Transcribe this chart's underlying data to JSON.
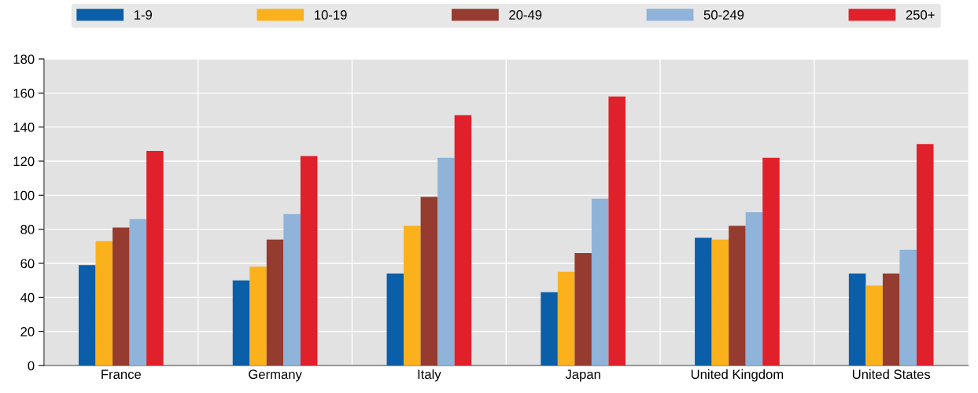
{
  "chart_data": {
    "type": "bar",
    "categories": [
      "France",
      "Germany",
      "Italy",
      "Japan",
      "United Kingdom",
      "United States"
    ],
    "series": [
      {
        "name": "1-9",
        "color": "#0b5ea8",
        "values": [
          59,
          50,
          54,
          43,
          75,
          54
        ]
      },
      {
        "name": "10-19",
        "color": "#fbb11c",
        "values": [
          73,
          58,
          82,
          55,
          74,
          47
        ]
      },
      {
        "name": "20-49",
        "color": "#953b2f",
        "values": [
          81,
          74,
          99,
          66,
          82,
          54
        ]
      },
      {
        "name": "50-249",
        "color": "#8fb3d9",
        "values": [
          86,
          89,
          122,
          98,
          90,
          68
        ]
      },
      {
        "name": "250+",
        "color": "#e0202a",
        "values": [
          126,
          123,
          147,
          158,
          122,
          130
        ]
      }
    ],
    "ylim": [
      0,
      180
    ],
    "yticks": [
      0,
      20,
      40,
      60,
      80,
      100,
      120,
      140,
      160,
      180
    ],
    "grid": true,
    "legend": "top"
  }
}
